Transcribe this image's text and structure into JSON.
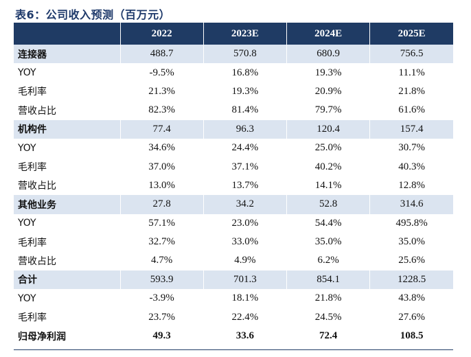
{
  "title": "表6：公司收入预测（百万元）",
  "header": [
    "",
    "2022",
    "2023E",
    "2024E",
    "2025E"
  ],
  "rows": [
    {
      "label": "连接器",
      "section": true,
      "values": [
        "488.7",
        "570.8",
        "680.9",
        "756.5"
      ]
    },
    {
      "label": "YOY",
      "values": [
        "-9.5%",
        "16.8%",
        "19.3%",
        "11.1%"
      ]
    },
    {
      "label": "毛利率",
      "values": [
        "21.3%",
        "19.3%",
        "20.9%",
        "21.8%"
      ]
    },
    {
      "label": "营收占比",
      "values": [
        "82.3%",
        "81.4%",
        "79.7%",
        "61.6%"
      ]
    },
    {
      "label": "机构件",
      "section": true,
      "values": [
        "77.4",
        "96.3",
        "120.4",
        "157.4"
      ]
    },
    {
      "label": "YOY",
      "values": [
        "34.6%",
        "24.4%",
        "25.0%",
        "30.7%"
      ]
    },
    {
      "label": "毛利率",
      "values": [
        "37.0%",
        "37.1%",
        "40.2%",
        "40.3%"
      ]
    },
    {
      "label": "营收占比",
      "values": [
        "13.0%",
        "13.7%",
        "14.1%",
        "12.8%"
      ]
    },
    {
      "label": "其他业务",
      "section": true,
      "values": [
        "27.8",
        "34.2",
        "52.8",
        "314.6"
      ]
    },
    {
      "label": "YOY",
      "values": [
        "57.1%",
        "23.0%",
        "54.4%",
        "495.8%"
      ]
    },
    {
      "label": "毛利率",
      "values": [
        "32.7%",
        "33.0%",
        "35.0%",
        "35.0%"
      ]
    },
    {
      "label": "营收占比",
      "values": [
        "4.7%",
        "4.9%",
        "6.2%",
        "25.6%"
      ]
    },
    {
      "label": "合计",
      "section": true,
      "values": [
        "593.9",
        "701.3",
        "854.1",
        "1228.5"
      ]
    },
    {
      "label": "YOY",
      "values": [
        "-3.9%",
        "18.1%",
        "21.8%",
        "43.8%"
      ]
    },
    {
      "label": "毛利率",
      "values": [
        "23.7%",
        "22.4%",
        "24.5%",
        "27.6%"
      ]
    },
    {
      "label": "归母净利润",
      "bold": true,
      "values": [
        "49.3",
        "33.6",
        "72.4",
        "108.5"
      ]
    }
  ]
}
